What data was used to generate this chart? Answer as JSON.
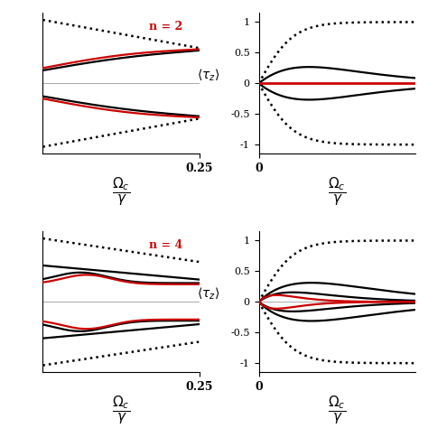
{
  "n2_label": "n = 2",
  "n4_label": "n = 4",
  "background_color": "#ffffff",
  "line_color_black": "#000000",
  "line_color_red": "#cc0000",
  "label_color_red": "#cc0000",
  "gray_line": "#aaaaaa",
  "xlim_left": [
    0,
    0.25
  ],
  "xlim_right": [
    0,
    3.5
  ],
  "ylim_left": [
    -0.3,
    0.3
  ],
  "ylim_right": [
    -1.15,
    1.15
  ],
  "yticks_right": [
    -1,
    -0.5,
    0,
    0.5,
    1
  ],
  "ytick_labels_right": [
    "-1",
    "-0.5",
    "0",
    "0.5",
    "1"
  ]
}
